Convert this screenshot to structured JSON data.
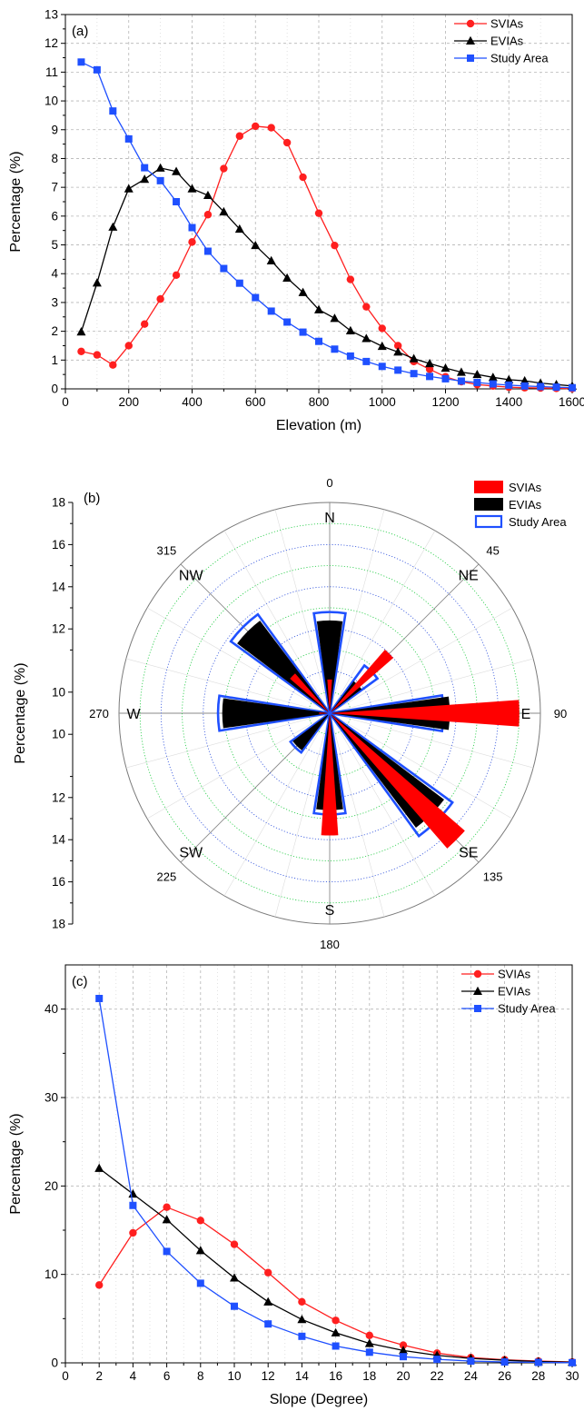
{
  "chart_data": [
    {
      "type": "line",
      "panel": "(a)",
      "xlabel": "Elevation (m)",
      "ylabel": "Percentage (%)",
      "xlim": [
        0,
        1600
      ],
      "ylim": [
        0,
        13
      ],
      "xticks": [
        "0",
        "200",
        "400",
        "600",
        "800",
        "1000",
        "1200",
        "1400",
        "1600"
      ],
      "yticks": [
        "0",
        "1",
        "2",
        "3",
        "4",
        "5",
        "6",
        "7",
        "8",
        "9",
        "10",
        "11",
        "12",
        "13"
      ],
      "grid": true,
      "legend_position": "top-right",
      "x": [
        50,
        100,
        150,
        200,
        250,
        300,
        350,
        400,
        450,
        500,
        550,
        600,
        650,
        700,
        750,
        800,
        850,
        900,
        950,
        1000,
        1050,
        1100,
        1150,
        1200,
        1250,
        1300,
        1350,
        1400,
        1450,
        1500,
        1550,
        1600
      ],
      "series": [
        {
          "name": "SVIAs",
          "color": "#ff1f1f",
          "marker": "circle",
          "values": [
            1.3,
            1.18,
            0.83,
            1.5,
            2.25,
            3.12,
            3.95,
            5.1,
            6.05,
            7.65,
            8.78,
            9.12,
            9.07,
            8.55,
            7.35,
            6.1,
            4.98,
            3.8,
            2.85,
            2.1,
            1.5,
            0.95,
            0.68,
            0.42,
            0.25,
            0.15,
            0.1,
            0.06,
            0.04,
            0.03,
            0.02,
            0.01
          ]
        },
        {
          "name": "EVIAs",
          "color": "#000000",
          "marker": "triangle",
          "values": [
            1.98,
            3.68,
            5.62,
            6.95,
            7.28,
            7.67,
            7.55,
            6.95,
            6.72,
            6.15,
            5.55,
            4.98,
            4.45,
            3.85,
            3.35,
            2.75,
            2.45,
            2.02,
            1.75,
            1.48,
            1.28,
            1.05,
            0.88,
            0.72,
            0.58,
            0.5,
            0.4,
            0.32,
            0.28,
            0.2,
            0.15,
            0.1
          ]
        },
        {
          "name": "Study Area",
          "color": "#1f50ff",
          "marker": "square",
          "values": [
            11.35,
            11.08,
            9.65,
            8.68,
            7.68,
            7.23,
            6.5,
            5.6,
            4.78,
            4.18,
            3.67,
            3.17,
            2.7,
            2.32,
            1.97,
            1.65,
            1.38,
            1.14,
            0.95,
            0.78,
            0.65,
            0.53,
            0.43,
            0.35,
            0.27,
            0.22,
            0.17,
            0.13,
            0.1,
            0.08,
            0.06,
            0.04
          ]
        }
      ]
    },
    {
      "type": "polar-bar",
      "panel": "(b)",
      "ylabel": "Percentage (%)",
      "radial_max": 18,
      "radial_axis_ticks": [
        "18",
        "16",
        "14",
        "12",
        "10",
        "10",
        "12",
        "14",
        "16",
        "18"
      ],
      "ring_values": [
        10,
        12,
        14,
        16,
        18
      ],
      "angle_labels": [
        "0",
        "45",
        "90",
        "135",
        "180",
        "225",
        "270",
        "315"
      ],
      "direction_labels": [
        "N",
        "NE",
        "E",
        "SE",
        "S",
        "SW",
        "W",
        "NW"
      ],
      "directions": [
        0,
        45,
        90,
        135,
        180,
        225,
        270,
        315
      ],
      "legend_position": "top-right",
      "series": [
        {
          "name": "Study Area",
          "color": "#1f50ff",
          "style": "outline",
          "values": [
            12.8,
            10.8,
            13.4,
            15.2,
            12.8,
            10.3,
            13.3,
            13.8
          ]
        },
        {
          "name": "EVIAs",
          "color": "#000000",
          "style": "filled",
          "values": [
            12.4,
            9.9,
            13.7,
            14.8,
            12.6,
            10.2,
            13.1,
            13.5
          ]
        },
        {
          "name": "SVIAs",
          "color": "#ff0000",
          "style": "filled",
          "values": [
            9.6,
            12.0,
            17.0,
            16.5,
            13.8,
            8.0,
            8.5,
            10.5
          ]
        }
      ]
    },
    {
      "type": "line",
      "panel": "(c)",
      "xlabel": "Slope (Degree)",
      "ylabel": "Percentage (%)",
      "xlim": [
        0,
        30
      ],
      "ylim": [
        0,
        45
      ],
      "xticks": [
        "0",
        "2",
        "4",
        "6",
        "8",
        "10",
        "12",
        "14",
        "16",
        "18",
        "20",
        "22",
        "24",
        "26",
        "28",
        "30"
      ],
      "yticks": [
        "0",
        "10",
        "20",
        "30",
        "40"
      ],
      "grid": true,
      "legend_position": "top-right",
      "x": [
        2,
        4,
        6,
        8,
        10,
        12,
        14,
        16,
        18,
        20,
        22,
        24,
        26,
        28,
        30
      ],
      "series": [
        {
          "name": "SVIAs",
          "color": "#ff1f1f",
          "marker": "circle",
          "values": [
            8.8,
            14.7,
            17.6,
            16.1,
            13.4,
            10.2,
            6.9,
            4.8,
            3.1,
            2.0,
            1.1,
            0.6,
            0.35,
            0.2,
            0.1
          ]
        },
        {
          "name": "EVIAs",
          "color": "#000000",
          "marker": "triangle",
          "values": [
            22.0,
            19.1,
            16.2,
            12.7,
            9.6,
            6.9,
            4.9,
            3.4,
            2.2,
            1.4,
            0.85,
            0.5,
            0.3,
            0.15,
            0.08
          ]
        },
        {
          "name": "Study Area",
          "color": "#1f50ff",
          "marker": "square",
          "values": [
            41.2,
            17.8,
            12.6,
            9.0,
            6.4,
            4.4,
            3.0,
            1.9,
            1.2,
            0.7,
            0.4,
            0.2,
            0.1,
            0.05,
            0.02
          ]
        }
      ]
    }
  ]
}
